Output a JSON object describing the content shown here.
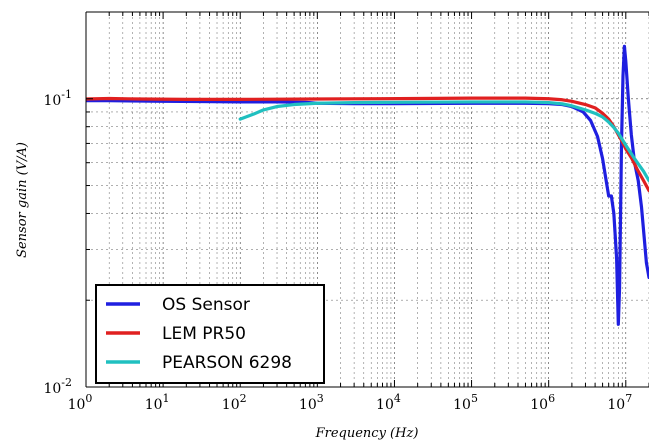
{
  "chart_data": {
    "type": "line",
    "title": "",
    "xlabel": "Frequency (Hz)",
    "ylabel": "Sensor gain (V/A)",
    "xscale": "log",
    "yscale": "log",
    "xlim": [
      1,
      20000000
    ],
    "ylim": [
      0.01,
      0.2
    ],
    "grid": true,
    "grid_minor": true,
    "legend_position": "lower-left",
    "x_ticks": [
      {
        "value": 1,
        "label": "10^0",
        "base": "10",
        "exp": "0"
      },
      {
        "value": 10,
        "label": "10^1",
        "base": "10",
        "exp": "1"
      },
      {
        "value": 100,
        "label": "10^2",
        "base": "10",
        "exp": "2"
      },
      {
        "value": 1000,
        "label": "10^3",
        "base": "10",
        "exp": "3"
      },
      {
        "value": 10000,
        "label": "10^4",
        "base": "10",
        "exp": "4"
      },
      {
        "value": 100000,
        "label": "10^5",
        "base": "10",
        "exp": "5"
      },
      {
        "value": 1000000,
        "label": "10^6",
        "base": "10",
        "exp": "6"
      },
      {
        "value": 10000000,
        "label": "10^7",
        "base": "10",
        "exp": "7"
      }
    ],
    "y_ticks": [
      {
        "value": 0.01,
        "label": "10^-2",
        "base": "10",
        "exp": "-2"
      },
      {
        "value": 0.1,
        "label": "10^-1",
        "base": "10",
        "exp": "-1"
      }
    ],
    "series": [
      {
        "name": "OS Sensor",
        "color": "#1f1fe0",
        "points": [
          [
            1,
            0.0985
          ],
          [
            2,
            0.0985
          ],
          [
            5,
            0.0982
          ],
          [
            10,
            0.098
          ],
          [
            30,
            0.0978
          ],
          [
            100,
            0.0975
          ],
          [
            300,
            0.0975
          ],
          [
            700,
            0.0972
          ],
          [
            1000,
            0.0965
          ],
          [
            3000,
            0.0962
          ],
          [
            10000,
            0.0962
          ],
          [
            100000,
            0.0965
          ],
          [
            500000,
            0.0965
          ],
          [
            1000000,
            0.0962
          ],
          [
            1500000,
            0.0955
          ],
          [
            2000000,
            0.094
          ],
          [
            2800000,
            0.09
          ],
          [
            3500000,
            0.084
          ],
          [
            4300000,
            0.074
          ],
          [
            5000000,
            0.062
          ],
          [
            5500000,
            0.053
          ],
          [
            6000000,
            0.046
          ],
          [
            6500000,
            0.046
          ],
          [
            7000000,
            0.04
          ],
          [
            7600000,
            0.028
          ],
          [
            8000000,
            0.0165
          ],
          [
            8300000,
            0.022
          ],
          [
            8800000,
            0.07
          ],
          [
            9200000,
            0.12
          ],
          [
            9600000,
            0.152
          ],
          [
            10000000,
            0.135
          ],
          [
            10800000,
            0.1
          ],
          [
            11800000,
            0.075
          ],
          [
            13000000,
            0.06
          ],
          [
            14500000,
            0.052
          ],
          [
            16000000,
            0.042
          ],
          [
            17500000,
            0.032
          ],
          [
            18500000,
            0.027
          ],
          [
            20000000,
            0.024
          ]
        ]
      },
      {
        "name": "LEM PR50",
        "color": "#e02020",
        "points": [
          [
            1,
            0.0998
          ],
          [
            2,
            0.1002
          ],
          [
            5,
            0.0998
          ],
          [
            20,
            0.0995
          ],
          [
            100,
            0.0995
          ],
          [
            1000,
            0.0998
          ],
          [
            20000,
            0.1002
          ],
          [
            100000,
            0.1005
          ],
          [
            500000,
            0.1005
          ],
          [
            1000000,
            0.1
          ],
          [
            1500000,
            0.0992
          ],
          [
            2000000,
            0.098
          ],
          [
            3000000,
            0.0955
          ],
          [
            4000000,
            0.093
          ],
          [
            5000000,
            0.089
          ],
          [
            6000000,
            0.085
          ],
          [
            7000000,
            0.08
          ],
          [
            8000000,
            0.075
          ],
          [
            9000000,
            0.071
          ],
          [
            10000000,
            0.067
          ],
          [
            12000000,
            0.062
          ],
          [
            14000000,
            0.057
          ],
          [
            17000000,
            0.052
          ],
          [
            20000000,
            0.048
          ]
        ]
      },
      {
        "name": "PEARSON 6298",
        "color": "#20c0c0",
        "points": [
          [
            100,
            0.085
          ],
          [
            150,
            0.0885
          ],
          [
            200,
            0.0915
          ],
          [
            300,
            0.094
          ],
          [
            500,
            0.0955
          ],
          [
            1000,
            0.0965
          ],
          [
            3000,
            0.097
          ],
          [
            10000,
            0.0972
          ],
          [
            100000,
            0.0975
          ],
          [
            500000,
            0.0975
          ],
          [
            1000000,
            0.097
          ],
          [
            1500000,
            0.096
          ],
          [
            2000000,
            0.0945
          ],
          [
            3000000,
            0.0915
          ],
          [
            4000000,
            0.089
          ],
          [
            5000000,
            0.0865
          ],
          [
            6000000,
            0.083
          ],
          [
            7000000,
            0.0795
          ],
          [
            8000000,
            0.076
          ],
          [
            10000000,
            0.069
          ],
          [
            13000000,
            0.062
          ],
          [
            17000000,
            0.056
          ],
          [
            20000000,
            0.052
          ]
        ]
      }
    ]
  }
}
